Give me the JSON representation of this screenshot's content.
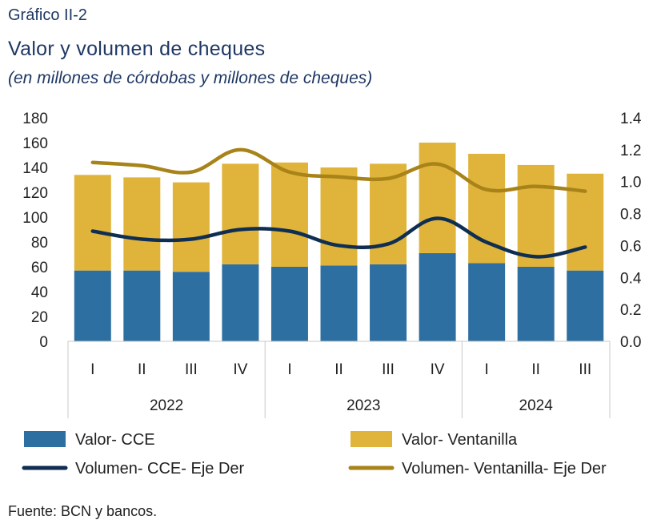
{
  "header": {
    "kicker": "Gráfico II-2",
    "title": "Valor y volumen de cheques",
    "subtitle": "(en millones de córdobas y millones de cheques)"
  },
  "footer": {
    "source": "Fuente: BCN y bancos."
  },
  "chart_data": {
    "type": "bar",
    "stacked": true,
    "categories": [
      "I",
      "II",
      "III",
      "IV",
      "I",
      "II",
      "III",
      "IV",
      "I",
      "II",
      "III"
    ],
    "groups": [
      {
        "label": "2022",
        "count": 4
      },
      {
        "label": "2023",
        "count": 4
      },
      {
        "label": "2024",
        "count": 3
      }
    ],
    "ylim": [
      0,
      180
    ],
    "yticks": [
      "0",
      "20",
      "40",
      "60",
      "80",
      "100",
      "120",
      "140",
      "160",
      "180"
    ],
    "y2lim": [
      0,
      1.4
    ],
    "y2ticks": [
      "0.0",
      "0.2",
      "0.4",
      "0.6",
      "0.8",
      "1.0",
      "1.2",
      "1.4"
    ],
    "series": [
      {
        "name": "Valor- CCE",
        "kind": "bar",
        "axis": "left",
        "color": "#2e6fa1",
        "values": [
          57,
          57,
          56,
          62,
          60,
          61,
          62,
          71,
          63,
          60,
          57
        ]
      },
      {
        "name": "Valor- Ventanilla",
        "kind": "bar",
        "axis": "left",
        "color": "#e0b43a",
        "values": [
          77,
          75,
          72,
          81,
          84,
          79,
          81,
          89,
          88,
          82,
          78
        ]
      },
      {
        "name": "Volumen- CCE- Eje Der",
        "kind": "line",
        "axis": "right",
        "color": "#0f2e52",
        "values": [
          0.69,
          0.64,
          0.64,
          0.7,
          0.69,
          0.6,
          0.61,
          0.77,
          0.62,
          0.53,
          0.59
        ]
      },
      {
        "name": "Volumen- Ventanilla- Eje Der",
        "kind": "line",
        "axis": "right",
        "color": "#a88319",
        "values": [
          1.12,
          1.1,
          1.06,
          1.2,
          1.06,
          1.03,
          1.02,
          1.11,
          0.95,
          0.97,
          0.94
        ]
      }
    ],
    "grid": false,
    "legend_position": "bottom"
  }
}
